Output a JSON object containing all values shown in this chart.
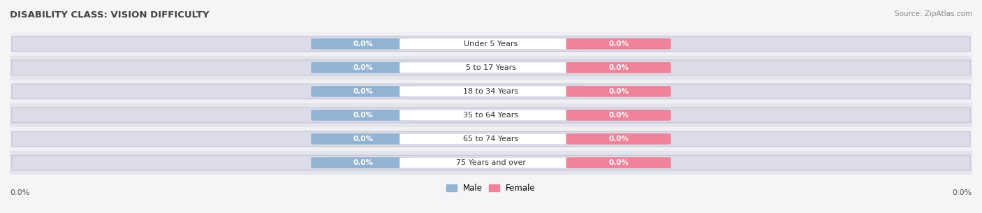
{
  "title": "DISABILITY CLASS: VISION DIFFICULTY",
  "source_text": "Source: ZipAtlas.com",
  "categories": [
    "Under 5 Years",
    "5 to 17 Years",
    "18 to 34 Years",
    "35 to 64 Years",
    "65 to 74 Years",
    "75 Years and over"
  ],
  "male_values": [
    0.0,
    0.0,
    0.0,
    0.0,
    0.0,
    0.0
  ],
  "female_values": [
    0.0,
    0.0,
    0.0,
    0.0,
    0.0,
    0.0
  ],
  "male_color": "#92b4d4",
  "female_color": "#f0829a",
  "bar_bg_color": "#e4e4ec",
  "bar_bg_edge_color": "#c8c8d8",
  "row_bg_even": "#f0f0f4",
  "row_bg_odd": "#e4e4ec",
  "category_text_color": "#333333",
  "title_color": "#444444",
  "source_color": "#888888",
  "xlim_left": "0.0%",
  "xlim_right": "0.0%",
  "legend_labels": [
    "Male",
    "Female"
  ],
  "figsize": [
    14.06,
    3.05
  ],
  "dpi": 100
}
